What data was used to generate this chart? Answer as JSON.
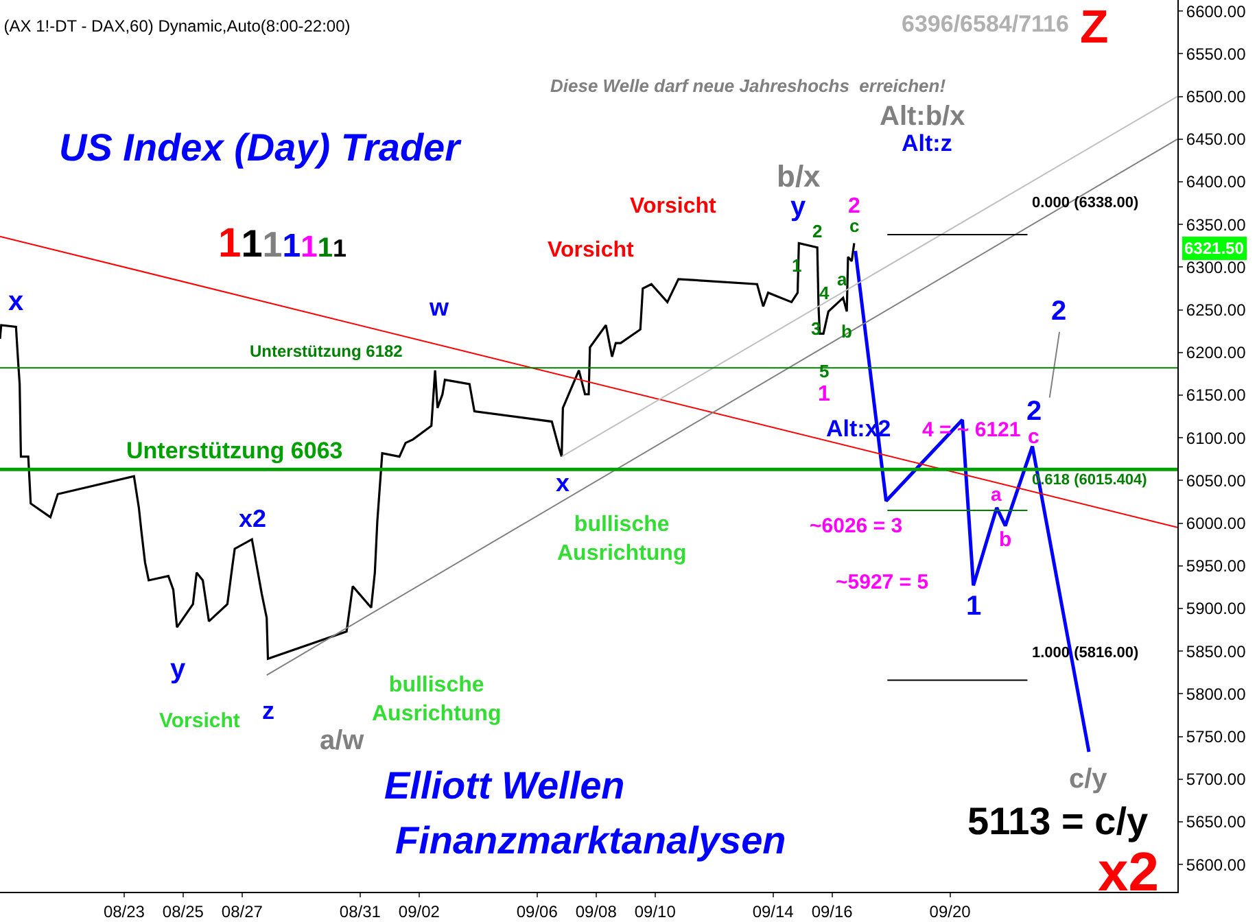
{
  "chart_data": {
    "type": "line",
    "title": "(AX 1!-DT - DAX,60) Dynamic,Auto(8:00-22:00)",
    "xlim": [
      "--08-18T19:00",
      "--09-27T17:00"
    ],
    "ylim": [
      5568,
      6613
    ],
    "xticks": [
      {
        "value": "--08-23",
        "label": "08/23"
      },
      {
        "value": "--08-25",
        "label": "08/25"
      },
      {
        "value": "--08-27",
        "label": "08/27"
      },
      {
        "value": "--08-31",
        "label": "08/31"
      },
      {
        "value": "--09-02",
        "label": "09/02"
      },
      {
        "value": "--09-06",
        "label": "09/06"
      },
      {
        "value": "--09-08",
        "label": "09/08"
      },
      {
        "value": "--09-10",
        "label": "09/10"
      },
      {
        "value": "--09-14",
        "label": "09/14"
      },
      {
        "value": "--09-16",
        "label": "09/16"
      },
      {
        "value": "--09-20",
        "label": "09/20"
      }
    ],
    "yticks": [
      {
        "value": 5600,
        "label": "5600.00"
      },
      {
        "value": 5650,
        "label": "5650.00"
      },
      {
        "value": 5700,
        "label": "5700.00"
      },
      {
        "value": 5750,
        "label": "5750.00"
      },
      {
        "value": 5800,
        "label": "5800.00"
      },
      {
        "value": 5850,
        "label": "5850.00"
      },
      {
        "value": 5900,
        "label": "5900.00"
      },
      {
        "value": 5950,
        "label": "5950.00"
      },
      {
        "value": 6000,
        "label": "6000.00"
      },
      {
        "value": 6050,
        "label": "6050.00"
      },
      {
        "value": 6100,
        "label": "6100.00"
      },
      {
        "value": 6150,
        "label": "6150.00"
      },
      {
        "value": 6200,
        "label": "6200.00"
      },
      {
        "value": 6250,
        "label": "6250.00"
      },
      {
        "value": 6300,
        "label": "6300.00"
      },
      {
        "value": 6350,
        "label": "6350.00"
      },
      {
        "value": 6400,
        "label": "6400.00"
      },
      {
        "value": 6450,
        "label": "6450.00"
      },
      {
        "value": 6500,
        "label": "6500.00"
      },
      {
        "value": 6550,
        "label": "6550.00"
      },
      {
        "value": 6600,
        "label": "6600.00"
      }
    ],
    "series": [
      {
        "color": "#000000",
        "x": [
          "--08-18T19:00",
          "--08-18T20:00",
          "--08-19T08:00",
          "--08-19T10:00",
          "--08-19T11:00",
          "--08-19T12:00",
          "--08-19T18:00",
          "--08-19T20:00",
          "--08-20T12:00",
          "--08-20T18:00",
          "--08-23T08:00",
          "--08-23T12:00",
          "--08-23T14:00",
          "--08-23T17:00",
          "--08-23T20:00",
          "--08-24T12:00",
          "--08-24T16:00",
          "--08-24T19:00",
          "--08-25T08:00",
          "--08-25T11:00",
          "--08-25T16:00",
          "--08-25T21:00",
          "--08-26T12:00",
          "--08-26T16:00",
          "--08-26T18:00",
          "--08-27T08:00",
          "--08-27T12:00",
          "--08-27T16:00",
          "--08-27T20:00",
          "--08-27T21:00",
          "--08-30T13:00",
          "--08-30T18:00",
          "--08-31T09:00",
          "--08-31T12:00",
          "--08-31T14:00",
          "--08-31T18:00",
          "--09-01T08:00",
          "--09-01T13:00",
          "--09-01T19:00",
          "--09-02T10:00",
          "--09-02T13:00",
          "--09-02T15:00",
          "--09-02T19:00",
          "--09-02T21:00",
          "--09-03T17:00",
          "--09-03T21:00",
          "--09-06T12:00",
          "--09-06T18:00",
          "--09-06T20:00",
          "--09-06T21:00",
          "--09-07T10:00",
          "--09-07T15:00",
          "--09-07T18:00",
          "--09-07T19:00",
          "--09-08T08:00",
          "--09-08T13:00",
          "--09-08T16:00",
          "--09-08T20:00",
          "--09-09T12:00",
          "--09-09T14:00",
          "--09-09T21:00",
          "--09-10T10:00",
          "--09-10T19:00",
          "--09-13T11:00",
          "--09-13T16:00",
          "--09-13T20:00",
          "--09-14T15:00",
          "--09-14T20:00",
          "--09-14T21:00",
          "--09-15T12:00",
          "--09-15T13:00",
          "--09-15T14:00",
          "--09-15T17:00",
          "--09-15T21:00",
          "--09-16T09:00",
          "--09-16T12:00",
          "--09-16T13:00",
          "--09-16T16:00",
          "--09-16T18:00"
        ],
        "values": [
          6216,
          6232,
          6230,
          6184,
          6163,
          6078,
          6078,
          6023,
          6007,
          6034,
          6055,
          6018,
          5991,
          5954,
          5933,
          5938,
          5922,
          5878,
          5905,
          5942,
          5933,
          5885,
          5905,
          5949,
          5970,
          5981,
          5949,
          5917,
          5889,
          5841,
          5873,
          5926,
          5901,
          5942,
          6002,
          6082,
          6078,
          6094,
          6098,
          6114,
          6179,
          6135,
          6151,
          6168,
          6163,
          6131,
          6119,
          6087,
          6078,
          6135,
          6179,
          6151,
          6151,
          6206,
          6232,
          6195,
          6211,
          6211,
          6227,
          6275,
          6280,
          6259,
          6286,
          6280,
          6254,
          6270,
          6259,
          6270,
          6328,
          6323,
          6254,
          6222,
          6222,
          6248,
          6264,
          6248,
          6312,
          6307,
          6328
        ]
      },
      {
        "color": "#0000ff",
        "x": [
          "--09-16T19:00",
          "--09-17T20:00",
          "--09-20T10:00",
          "--09-20T19:00",
          "--09-21T14:00",
          "--09-21T21:00",
          "--09-22T19:00",
          "--09-24T17:00"
        ],
        "values": [
          6319,
          6026,
          6121,
          5927,
          6018,
          5997,
          6090,
          5732
        ]
      },
      {
        "color": "#808080",
        "x": [
          "--09-23T09:00",
          "--09-23T17:00"
        ],
        "values": [
          6147,
          6224
        ]
      },
      {
        "color": "#ff0000",
        "x": [
          "--08-18T19:00",
          "--09-27T17:00"
        ],
        "values": [
          6336,
          5995
        ]
      },
      {
        "color": "#808080",
        "x": [
          "--08-27T20:00",
          "--09-27T17:00"
        ],
        "values": [
          5822,
          6450
        ]
      },
      {
        "color": "#c0c0c0",
        "x": [
          "--09-06T20:00",
          "--09-27T17:00"
        ],
        "values": [
          6078,
          6500
        ]
      },
      {
        "color": "#000000",
        "x": [
          "--09-17T21:00",
          "--09-22T15:00"
        ],
        "values": [
          6338,
          6338
        ]
      },
      {
        "color": "#008000",
        "x": [
          "--09-17T21:00",
          "--09-22T15:00"
        ],
        "values": [
          6015,
          6015
        ]
      },
      {
        "color": "#000000",
        "x": [
          "--09-17T21:00",
          "--09-22T15:00"
        ],
        "values": [
          5816,
          5816
        ]
      }
    ],
    "ref_lines": [
      {
        "axis": "y",
        "value": 6182,
        "label": "Unterstützung 6182",
        "color": "#008000"
      },
      {
        "axis": "y",
        "value": 6063,
        "label": "Unterstützung 6063",
        "color": "#00a000"
      }
    ],
    "annotations": [
      "x",
      "y",
      "x2",
      "z",
      "a/w",
      "w",
      "x",
      "b/x",
      "y",
      "1",
      "2",
      "3",
      "4",
      "5",
      "1",
      "a",
      "b",
      "c",
      "2",
      "~6026 = 3",
      "4 = ~ 6121",
      "~5927 = 5",
      "1",
      "a",
      "b",
      "c",
      "2",
      "2",
      "c/y",
      "0.000 (6338.00)",
      "0.618 (6015.404)",
      "1.000 (5816.00)",
      "Vorsicht",
      "Vorsicht",
      "Vorsicht",
      "bullische\nAusrichtung",
      "bullische\nAusrichtung",
      "US Index (Day) Trader",
      "1111111",
      "Diese Welle darf neue Jahreshochs  erreichen!",
      "6396/6584/7116",
      "Z",
      "Alt:b/x",
      "Alt:z",
      "Alt:x2",
      "Elliott Wellen",
      "Finanzmarktanalysen",
      "5113 = c/y",
      "x2",
      "6321.50"
    ]
  }
}
